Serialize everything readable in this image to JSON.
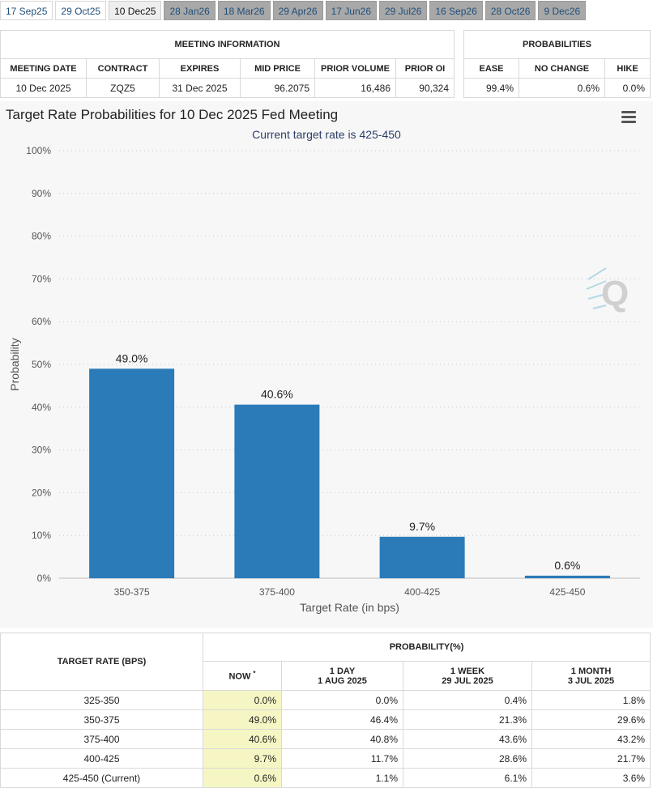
{
  "tabs": [
    {
      "label": "17 Sep25",
      "state": "white"
    },
    {
      "label": "29 Oct25",
      "state": "white"
    },
    {
      "label": "10 Dec25",
      "state": "current"
    },
    {
      "label": "28 Jan26",
      "state": "future"
    },
    {
      "label": "18 Mar26",
      "state": "future"
    },
    {
      "label": "29 Apr26",
      "state": "future"
    },
    {
      "label": "17 Jun26",
      "state": "future"
    },
    {
      "label": "29 Jul26",
      "state": "future"
    },
    {
      "label": "16 Sep26",
      "state": "future"
    },
    {
      "label": "28 Oct26",
      "state": "future"
    },
    {
      "label": "9 Dec26",
      "state": "future"
    }
  ],
  "meeting_info": {
    "title": "MEETING INFORMATION",
    "headers": [
      "MEETING DATE",
      "CONTRACT",
      "EXPIRES",
      "MID PRICE",
      "PRIOR VOLUME",
      "PRIOR OI"
    ],
    "row": [
      "10 Dec 2025",
      "ZQZ5",
      "31 Dec 2025",
      "96.2075",
      "16,486",
      "90,324"
    ]
  },
  "probabilities": {
    "title": "PROBABILITIES",
    "headers": [
      "EASE",
      "NO CHANGE",
      "HIKE"
    ],
    "row": [
      "99.4%",
      "0.6%",
      "0.0%"
    ]
  },
  "chart": {
    "menu_icon": "hamburger-menu-icon",
    "watermark_icon": "q-logo-icon",
    "bar_color": "#2b7bb9"
  },
  "chart_data": {
    "type": "bar",
    "title": "Target Rate Probabilities for 10 Dec 2025 Fed Meeting",
    "subtitle": "Current target rate is 425-450",
    "xlabel": "Target Rate (in bps)",
    "ylabel": "Probability",
    "categories": [
      "350-375",
      "375-400",
      "400-425",
      "425-450"
    ],
    "values": [
      49.0,
      40.6,
      9.7,
      0.6
    ],
    "data_labels": [
      "49.0%",
      "40.6%",
      "9.7%",
      "0.6%"
    ],
    "ylim": [
      0,
      100
    ],
    "yticks": [
      "0%",
      "10%",
      "20%",
      "30%",
      "40%",
      "50%",
      "60%",
      "70%",
      "80%",
      "90%",
      "100%"
    ],
    "grid": true
  },
  "prob_table": {
    "header_rate": "TARGET RATE (BPS)",
    "header_prob": "PROBABILITY(%)",
    "columns": [
      {
        "line1": "NOW",
        "line2": ""
      },
      {
        "line1": "1 DAY",
        "line2": "1 AUG 2025"
      },
      {
        "line1": "1 WEEK",
        "line2": "29 JUL 2025"
      },
      {
        "line1": "1 MONTH",
        "line2": "3 JUL 2025"
      }
    ],
    "now_marker": "*",
    "rows": [
      {
        "rate": "325-350",
        "values": [
          "0.0%",
          "0.0%",
          "0.4%",
          "1.8%"
        ]
      },
      {
        "rate": "350-375",
        "values": [
          "49.0%",
          "46.4%",
          "21.3%",
          "29.6%"
        ]
      },
      {
        "rate": "375-400",
        "values": [
          "40.6%",
          "40.8%",
          "43.6%",
          "43.2%"
        ]
      },
      {
        "rate": "400-425",
        "values": [
          "9.7%",
          "11.7%",
          "28.6%",
          "21.7%"
        ]
      },
      {
        "rate": "425-450 (Current)",
        "values": [
          "0.6%",
          "1.1%",
          "6.1%",
          "3.6%"
        ]
      }
    ]
  }
}
